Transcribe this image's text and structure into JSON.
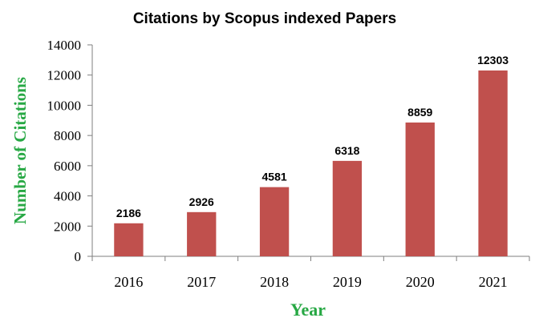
{
  "chart_data": {
    "type": "bar",
    "title": "Citations by Scopus indexed Papers",
    "xlabel": "Year",
    "ylabel": "Number of Citations",
    "categories": [
      "2016",
      "2017",
      "2018",
      "2019",
      "2020",
      "2021"
    ],
    "values": [
      2186,
      2926,
      4581,
      6318,
      8859,
      12303
    ],
    "ylim": [
      0,
      14000
    ],
    "yticks": [
      "0",
      "2000",
      "4000",
      "6000",
      "8000",
      "10000",
      "12000",
      "14000"
    ],
    "grid": false,
    "legend": "none",
    "bar_color": "#c0504d",
    "axis_title_color": "#27a844"
  }
}
